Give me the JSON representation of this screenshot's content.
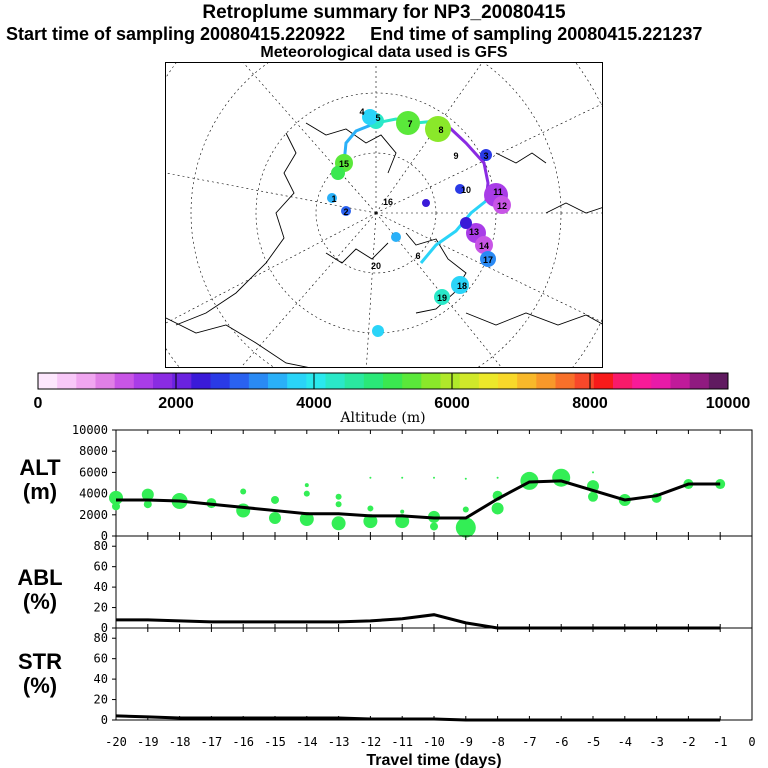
{
  "header": {
    "title": "Retroplume summary for NP3_20080415",
    "sampling": "Start time of sampling 20080415.220922     End time of sampling 20080415.221237",
    "met": "Meteorological data used is GFS"
  },
  "colorbar": {
    "label": "Altitude (m)",
    "ticks": [
      "0",
      "2000",
      "4000",
      "6000",
      "8000",
      "10000"
    ],
    "colors": [
      "#fde7fd",
      "#f8c8f8",
      "#f0a6f0",
      "#e07fe6",
      "#c855e6",
      "#a93ce8",
      "#8a2be2",
      "#6a22e0",
      "#3a1ad8",
      "#2a3ae6",
      "#2a62f0",
      "#2a8af4",
      "#2ab0f8",
      "#2ad4f8",
      "#2ae8ee",
      "#2ae8c8",
      "#2ae8a0",
      "#2ae878",
      "#3ae850",
      "#5ae83a",
      "#8ae82a",
      "#b0e82a",
      "#d0e82a",
      "#ece82a",
      "#f8d82a",
      "#f8b82a",
      "#f8982a",
      "#f8702a",
      "#f8482a",
      "#f81a1a",
      "#f81a6a",
      "#f81a98",
      "#e81aa8",
      "#c01a9a",
      "#901a80",
      "#601a60"
    ]
  },
  "map_labels": [
    "1",
    "2",
    "3",
    "4",
    "5",
    "6",
    "7",
    "8",
    "9",
    "10",
    "11",
    "12",
    "13",
    "14",
    "15",
    "16",
    "17",
    "18",
    "19",
    "20"
  ],
  "chart_data": [
    {
      "type": "line",
      "panel": "ALT",
      "ylabel": "ALT\n(m)",
      "ylim": [
        0,
        10000
      ],
      "yticks": [
        0,
        2000,
        4000,
        6000,
        8000,
        10000
      ],
      "x": [
        -20,
        -19,
        -18,
        -17,
        -16,
        -15,
        -14,
        -13,
        -12,
        -11,
        -10,
        -9,
        -8,
        -7,
        -6,
        -5,
        -4,
        -3,
        -2,
        -1
      ],
      "values": [
        3400,
        3400,
        3300,
        3000,
        2700,
        2400,
        2100,
        2100,
        1900,
        1900,
        1700,
        1700,
        3500,
        5100,
        5200,
        4300,
        3400,
        3800,
        4900,
        4900
      ],
      "dots": [
        {
          "x": -20,
          "y": 3600,
          "s": 7
        },
        {
          "x": -20,
          "y": 2800,
          "s": 4
        },
        {
          "x": -19,
          "y": 3900,
          "s": 6
        },
        {
          "x": -19,
          "y": 3000,
          "s": 4
        },
        {
          "x": -18,
          "y": 3300,
          "s": 8
        },
        {
          "x": -17,
          "y": 3100,
          "s": 5
        },
        {
          "x": -16,
          "y": 2400,
          "s": 7
        },
        {
          "x": -16,
          "y": 4200,
          "s": 3
        },
        {
          "x": -15,
          "y": 3400,
          "s": 4
        },
        {
          "x": -15,
          "y": 1700,
          "s": 6
        },
        {
          "x": -14,
          "y": 4000,
          "s": 3
        },
        {
          "x": -14,
          "y": 4800,
          "s": 2
        },
        {
          "x": -14,
          "y": 1600,
          "s": 7
        },
        {
          "x": -13,
          "y": 3700,
          "s": 3
        },
        {
          "x": -13,
          "y": 3000,
          "s": 3
        },
        {
          "x": -13,
          "y": 1200,
          "s": 7
        },
        {
          "x": -12,
          "y": 5500,
          "s": 1
        },
        {
          "x": -12,
          "y": 2600,
          "s": 3
        },
        {
          "x": -12,
          "y": 1400,
          "s": 7
        },
        {
          "x": -11,
          "y": 5500,
          "s": 1
        },
        {
          "x": -11,
          "y": 2300,
          "s": 2
        },
        {
          "x": -11,
          "y": 1400,
          "s": 7
        },
        {
          "x": -10,
          "y": 5500,
          "s": 1
        },
        {
          "x": -10,
          "y": 1800,
          "s": 6
        },
        {
          "x": -10,
          "y": 900,
          "s": 4
        },
        {
          "x": -9,
          "y": 5400,
          "s": 1
        },
        {
          "x": -9,
          "y": 2500,
          "s": 3
        },
        {
          "x": -9,
          "y": 800,
          "s": 10
        },
        {
          "x": -8,
          "y": 5500,
          "s": 1
        },
        {
          "x": -8,
          "y": 2600,
          "s": 6
        },
        {
          "x": -8,
          "y": 3800,
          "s": 5
        },
        {
          "x": -7,
          "y": 5200,
          "s": 9
        },
        {
          "x": -6,
          "y": 5500,
          "s": 9
        },
        {
          "x": -5,
          "y": 6000,
          "s": 1
        },
        {
          "x": -5,
          "y": 4700,
          "s": 6
        },
        {
          "x": -5,
          "y": 3700,
          "s": 5
        },
        {
          "x": -4,
          "y": 3400,
          "s": 6
        },
        {
          "x": -3,
          "y": 3600,
          "s": 5
        },
        {
          "x": -2,
          "y": 4900,
          "s": 5
        },
        {
          "x": -1,
          "y": 4900,
          "s": 5
        }
      ]
    },
    {
      "type": "line",
      "panel": "ABL",
      "ylabel": "ABL\n(%)",
      "ylim": [
        0,
        90
      ],
      "yticks": [
        0,
        20,
        40,
        60,
        80
      ],
      "x": [
        -20,
        -19,
        -18,
        -17,
        -16,
        -15,
        -14,
        -13,
        -12,
        -11,
        -10,
        -9,
        -8,
        -7,
        -6,
        -5,
        -4,
        -3,
        -2,
        -1
      ],
      "values": [
        8,
        8,
        7,
        6,
        6,
        6,
        6,
        6,
        7,
        9,
        13,
        5,
        0,
        0,
        0,
        0,
        0,
        0,
        0,
        0
      ]
    },
    {
      "type": "line",
      "panel": "STR",
      "ylabel": "STR\n(%)",
      "ylim": [
        0,
        90
      ],
      "yticks": [
        0,
        20,
        40,
        60,
        80
      ],
      "x": [
        -20,
        -19,
        -18,
        -17,
        -16,
        -15,
        -14,
        -13,
        -12,
        -11,
        -10,
        -9,
        -8,
        -7,
        -6,
        -5,
        -4,
        -3,
        -2,
        -1
      ],
      "values": [
        4,
        3,
        2,
        2,
        2,
        2,
        2,
        2,
        1,
        1,
        1,
        0,
        0,
        0,
        0,
        0,
        0,
        0,
        0,
        0
      ]
    }
  ],
  "xaxis": {
    "label": "Travel time (days)",
    "ticks": [
      "-20",
      "-19",
      "-18",
      "-17",
      "-16",
      "-15",
      "-14",
      "-13",
      "-12",
      "-11",
      "-10",
      "-9",
      "-8",
      "-7",
      "-6",
      "-5",
      "-4",
      "-3",
      "-2",
      "-1",
      "0"
    ]
  },
  "colors": {
    "dot": "#33ee55",
    "line": "#000000"
  }
}
